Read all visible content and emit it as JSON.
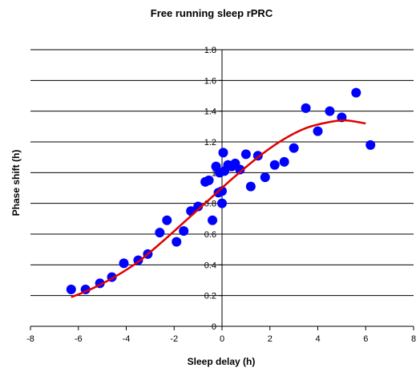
{
  "chart_data": {
    "type": "scatter",
    "title": "Free running sleep rPRC",
    "xlabel": "Sleep delay (h)",
    "ylabel": "Phase shift (h)",
    "xlim": [
      -8,
      8
    ],
    "ylim": [
      0,
      1.8
    ],
    "x_ticks": [
      "-8",
      "-6",
      "-4",
      "-2",
      "0",
      "2",
      "4",
      "6",
      "8"
    ],
    "y_ticks": [
      "0",
      "0.2",
      "0.4",
      "0.6",
      "0.8",
      "1",
      "1.2",
      "1.4",
      "1.6",
      "1.8"
    ],
    "grid": "horizontal major",
    "legend": "none",
    "series": [
      {
        "marker_color": "#0000FF",
        "points": [
          {
            "x": -6.3,
            "y": 0.24
          },
          {
            "x": -5.7,
            "y": 0.24
          },
          {
            "x": -5.1,
            "y": 0.28
          },
          {
            "x": -4.6,
            "y": 0.32
          },
          {
            "x": -4.1,
            "y": 0.41
          },
          {
            "x": -3.5,
            "y": 0.43
          },
          {
            "x": -3.1,
            "y": 0.47
          },
          {
            "x": -2.6,
            "y": 0.61
          },
          {
            "x": -2.3,
            "y": 0.69
          },
          {
            "x": -1.9,
            "y": 0.55
          },
          {
            "x": -1.6,
            "y": 0.62
          },
          {
            "x": -1.3,
            "y": 0.75
          },
          {
            "x": -1.0,
            "y": 0.78
          },
          {
            "x": -0.7,
            "y": 0.94
          },
          {
            "x": -0.55,
            "y": 0.95
          },
          {
            "x": -0.4,
            "y": 0.69
          },
          {
            "x": -0.25,
            "y": 1.04
          },
          {
            "x": -0.15,
            "y": 0.87
          },
          {
            "x": -0.1,
            "y": 1.0
          },
          {
            "x": 0.0,
            "y": 0.8
          },
          {
            "x": 0.0,
            "y": 0.88
          },
          {
            "x": 0.05,
            "y": 1.13
          },
          {
            "x": 0.1,
            "y": 1.01
          },
          {
            "x": 0.25,
            "y": 1.05
          },
          {
            "x": 0.4,
            "y": 1.04
          },
          {
            "x": 0.55,
            "y": 1.06
          },
          {
            "x": 0.75,
            "y": 1.02
          },
          {
            "x": 1.0,
            "y": 1.12
          },
          {
            "x": 1.2,
            "y": 0.91
          },
          {
            "x": 1.5,
            "y": 1.11
          },
          {
            "x": 1.8,
            "y": 0.97
          },
          {
            "x": 2.2,
            "y": 1.05
          },
          {
            "x": 2.6,
            "y": 1.07
          },
          {
            "x": 3.0,
            "y": 1.16
          },
          {
            "x": 3.5,
            "y": 1.42
          },
          {
            "x": 4.0,
            "y": 1.27
          },
          {
            "x": 4.5,
            "y": 1.4
          },
          {
            "x": 5.0,
            "y": 1.36
          },
          {
            "x": 5.6,
            "y": 1.52
          },
          {
            "x": 6.2,
            "y": 1.18
          }
        ]
      },
      {
        "type": "line",
        "line_color": "#E00000",
        "points": [
          {
            "x": -6.3,
            "y": 0.19
          },
          {
            "x": -5.5,
            "y": 0.24
          },
          {
            "x": -4.5,
            "y": 0.32
          },
          {
            "x": -3.5,
            "y": 0.42
          },
          {
            "x": -2.5,
            "y": 0.55
          },
          {
            "x": -1.5,
            "y": 0.69
          },
          {
            "x": -0.5,
            "y": 0.83
          },
          {
            "x": 0.5,
            "y": 0.97
          },
          {
            "x": 1.5,
            "y": 1.1
          },
          {
            "x": 2.5,
            "y": 1.21
          },
          {
            "x": 3.5,
            "y": 1.29
          },
          {
            "x": 4.5,
            "y": 1.33
          },
          {
            "x": 5.2,
            "y": 1.34
          },
          {
            "x": 6.0,
            "y": 1.32
          }
        ]
      }
    ]
  }
}
